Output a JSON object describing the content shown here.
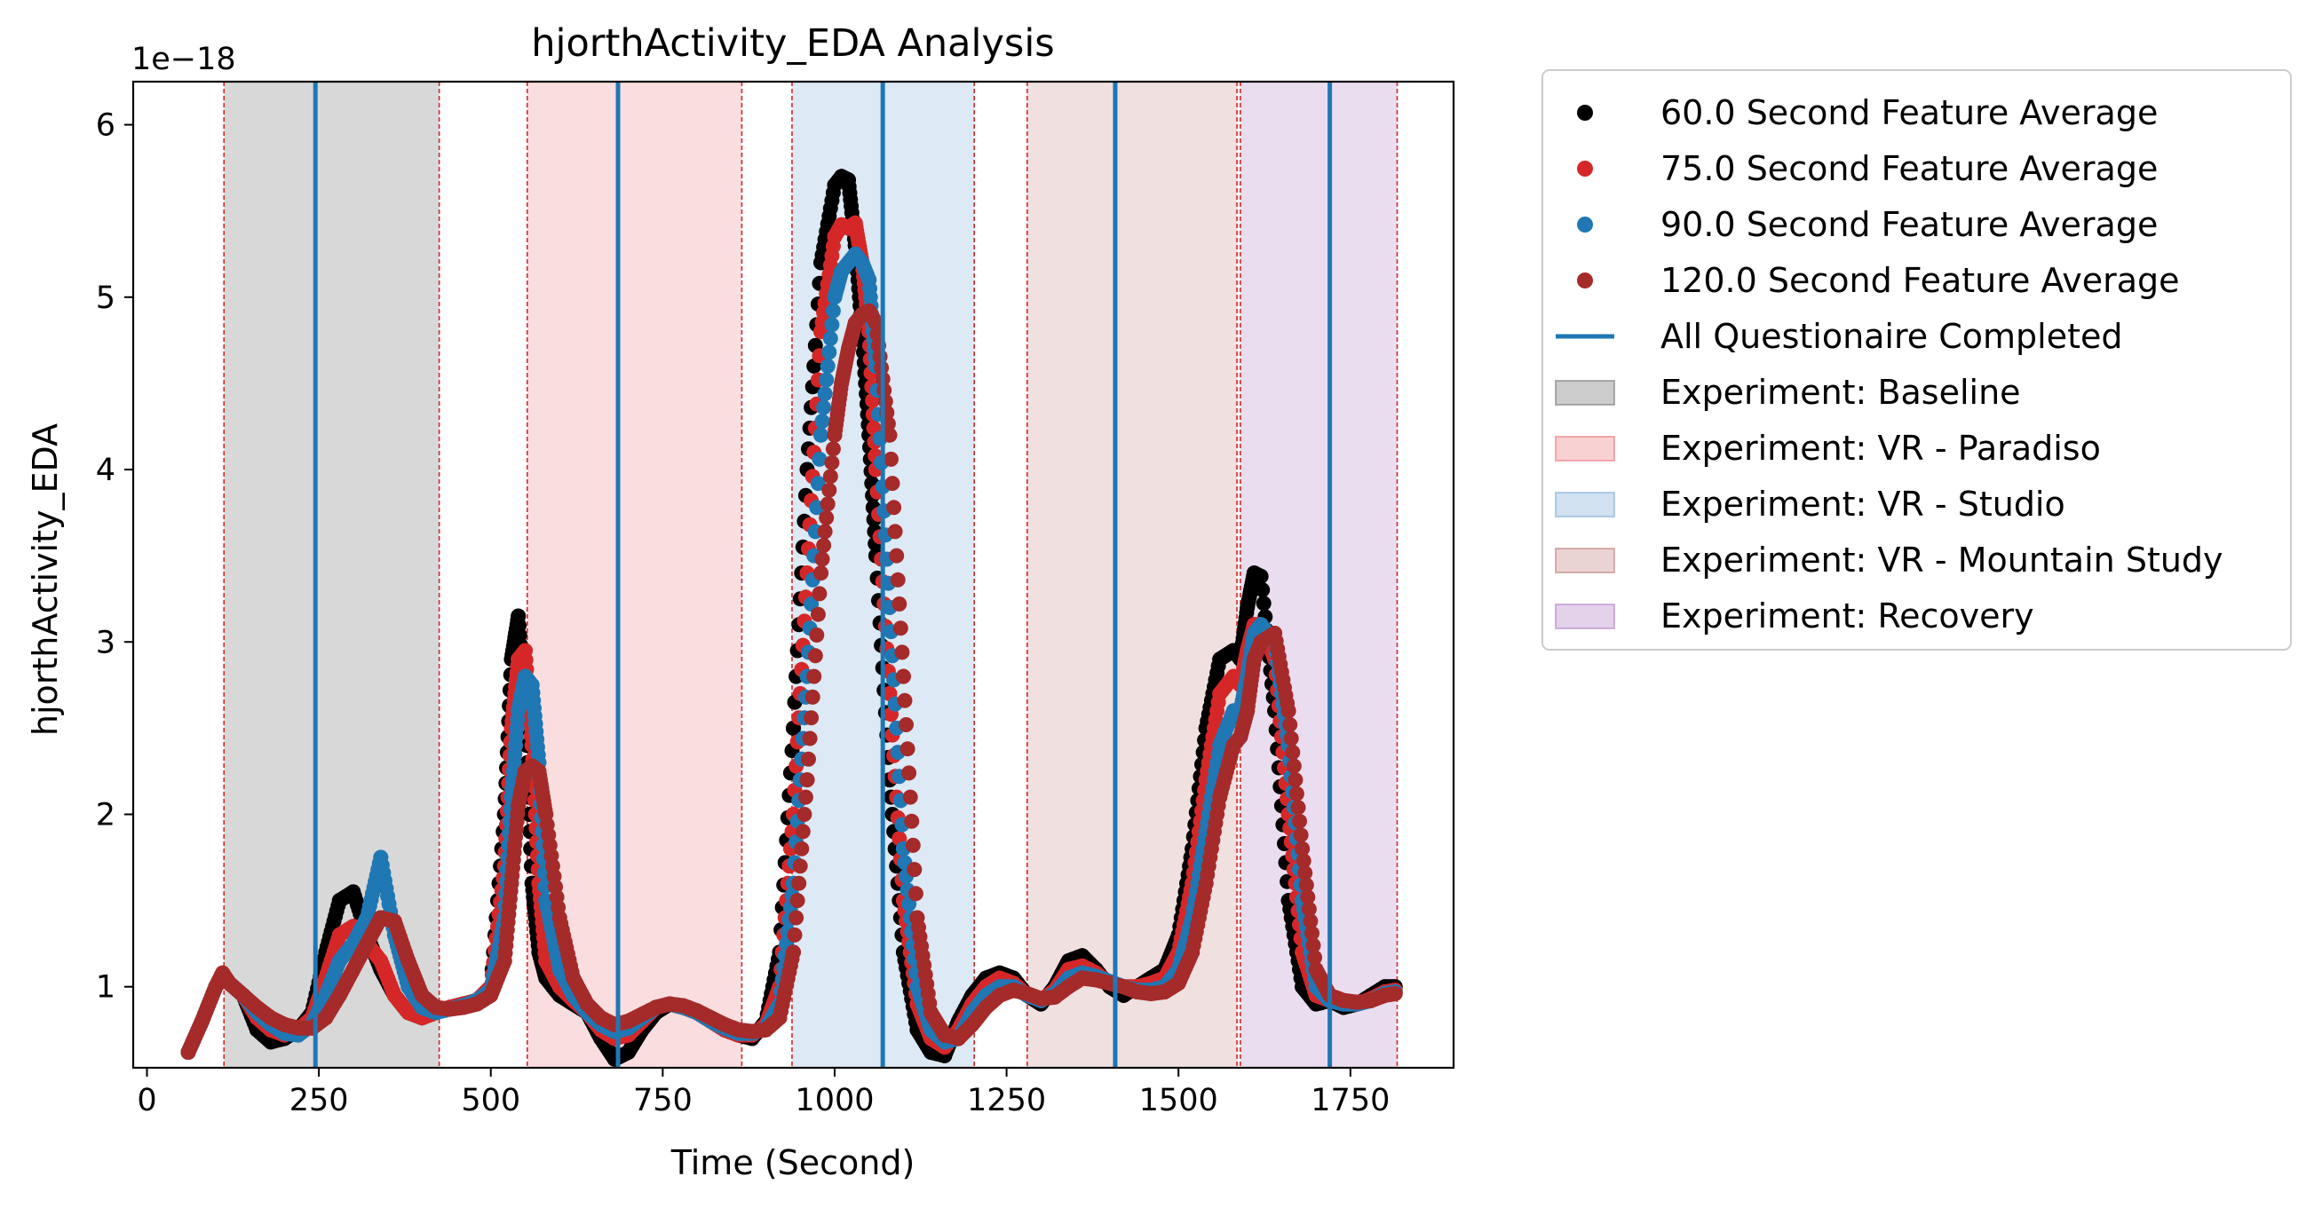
{
  "chart_data": {
    "type": "scatter",
    "title": "hjorthActivity_EDA Analysis",
    "xlabel": "Time (Second)",
    "ylabel": "hjorthActivity_EDA",
    "y_offset_label": "1e−18",
    "xlim": [
      -20,
      1900
    ],
    "ylim": [
      0.53,
      6.25
    ],
    "x_ticks": [
      0,
      250,
      500,
      750,
      1000,
      1250,
      1500,
      1750
    ],
    "y_ticks": [
      1,
      2,
      3,
      4,
      5,
      6
    ],
    "grid": false,
    "legend_position": "outside-right",
    "x": [
      60,
      80,
      100,
      110,
      120,
      140,
      160,
      180,
      200,
      220,
      240,
      260,
      280,
      300,
      320,
      340,
      360,
      380,
      400,
      420,
      440,
      460,
      480,
      500,
      520,
      530,
      540,
      550,
      560,
      570,
      580,
      600,
      620,
      640,
      660,
      680,
      700,
      720,
      740,
      760,
      780,
      800,
      820,
      840,
      860,
      880,
      900,
      920,
      940,
      960,
      980,
      1000,
      1010,
      1020,
      1030,
      1040,
      1050,
      1060,
      1080,
      1100,
      1120,
      1140,
      1160,
      1180,
      1200,
      1220,
      1240,
      1260,
      1280,
      1300,
      1320,
      1340,
      1360,
      1380,
      1400,
      1420,
      1440,
      1460,
      1480,
      1500,
      1520,
      1540,
      1560,
      1580,
      1590,
      1600,
      1610,
      1620,
      1640,
      1660,
      1680,
      1700,
      1720,
      1740,
      1760,
      1780,
      1800,
      1815
    ],
    "series": [
      {
        "name": "60.0 Second Feature Average",
        "color": "#000000",
        "values": [
          0.62,
          0.8,
          1.0,
          1.05,
          1.02,
          0.95,
          0.75,
          0.68,
          0.7,
          0.75,
          0.85,
          1.2,
          1.5,
          1.55,
          1.3,
          1.1,
          0.95,
          0.85,
          0.82,
          0.85,
          0.88,
          0.9,
          0.92,
          1.0,
          2.0,
          2.9,
          3.15,
          2.6,
          1.6,
          1.2,
          1.05,
          0.95,
          0.9,
          0.85,
          0.7,
          0.58,
          0.62,
          0.75,
          0.85,
          0.9,
          0.88,
          0.85,
          0.8,
          0.75,
          0.72,
          0.7,
          0.8,
          1.2,
          2.5,
          4.0,
          5.2,
          5.65,
          5.7,
          5.68,
          5.3,
          4.8,
          4.2,
          3.5,
          2.2,
          1.2,
          0.75,
          0.62,
          0.6,
          0.8,
          0.95,
          1.05,
          1.08,
          1.05,
          0.95,
          0.9,
          1.0,
          1.15,
          1.18,
          1.1,
          1.0,
          0.95,
          1.0,
          1.05,
          1.1,
          1.3,
          1.8,
          2.5,
          2.9,
          2.95,
          2.9,
          3.2,
          3.4,
          3.38,
          2.6,
          1.5,
          1.0,
          0.9,
          0.92,
          0.88,
          0.9,
          0.95,
          1.0,
          1.0
        ]
      },
      {
        "name": "75.0 Second Feature Average",
        "color": "#d62728",
        "values": [
          0.62,
          0.8,
          1.0,
          1.05,
          1.02,
          0.95,
          0.82,
          0.75,
          0.72,
          0.75,
          0.82,
          1.05,
          1.3,
          1.35,
          1.25,
          1.15,
          0.95,
          0.85,
          0.82,
          0.85,
          0.88,
          0.9,
          0.92,
          1.0,
          1.7,
          2.5,
          2.9,
          2.95,
          2.4,
          1.6,
          1.15,
          1.0,
          0.92,
          0.85,
          0.75,
          0.7,
          0.72,
          0.8,
          0.88,
          0.9,
          0.88,
          0.85,
          0.8,
          0.75,
          0.72,
          0.72,
          0.78,
          1.0,
          2.0,
          3.4,
          4.8,
          5.35,
          5.42,
          5.4,
          5.43,
          5.2,
          4.8,
          4.0,
          2.7,
          1.5,
          0.9,
          0.7,
          0.65,
          0.75,
          0.9,
          1.0,
          1.05,
          1.02,
          0.95,
          0.92,
          0.98,
          1.1,
          1.12,
          1.08,
          1.02,
          1.0,
          1.0,
          1.02,
          1.05,
          1.2,
          1.6,
          2.2,
          2.7,
          2.8,
          2.75,
          2.95,
          3.1,
          3.1,
          2.9,
          2.0,
          1.2,
          0.95,
          0.92,
          0.9,
          0.9,
          0.93,
          0.97,
          0.98
        ]
      },
      {
        "name": "90.0 Second Feature Average",
        "color": "#1f77b4",
        "values": [
          0.62,
          0.8,
          1.0,
          1.05,
          1.02,
          0.95,
          0.85,
          0.78,
          0.73,
          0.72,
          0.78,
          0.95,
          1.15,
          1.25,
          1.4,
          1.75,
          1.3,
          1.0,
          0.88,
          0.85,
          0.87,
          0.89,
          0.92,
          0.98,
          1.4,
          2.1,
          2.6,
          2.8,
          2.75,
          2.3,
          1.5,
          1.1,
          0.95,
          0.85,
          0.78,
          0.74,
          0.76,
          0.82,
          0.88,
          0.9,
          0.88,
          0.85,
          0.8,
          0.76,
          0.73,
          0.73,
          0.76,
          0.9,
          1.6,
          2.8,
          4.2,
          5.0,
          5.15,
          5.2,
          5.25,
          5.2,
          5.1,
          4.6,
          3.2,
          1.8,
          1.0,
          0.75,
          0.68,
          0.7,
          0.85,
          0.95,
          1.0,
          1.0,
          0.95,
          0.92,
          0.96,
          1.05,
          1.08,
          1.06,
          1.03,
          1.0,
          0.98,
          0.98,
          1.0,
          1.1,
          1.4,
          1.9,
          2.4,
          2.6,
          2.6,
          2.8,
          3.05,
          3.1,
          3.0,
          2.4,
          1.5,
          1.0,
          0.92,
          0.9,
          0.9,
          0.92,
          0.96,
          0.97
        ]
      },
      {
        "name": "120.0 Second Feature Average",
        "color": "#a52a2a",
        "values": [
          0.62,
          0.8,
          1.0,
          1.08,
          1.02,
          0.95,
          0.88,
          0.82,
          0.78,
          0.76,
          0.76,
          0.82,
          0.95,
          1.1,
          1.25,
          1.4,
          1.38,
          1.15,
          0.95,
          0.88,
          0.87,
          0.88,
          0.9,
          0.95,
          1.15,
          1.6,
          2.05,
          2.25,
          2.28,
          2.25,
          2.0,
          1.4,
          1.05,
          0.9,
          0.82,
          0.78,
          0.8,
          0.84,
          0.88,
          0.9,
          0.89,
          0.86,
          0.82,
          0.78,
          0.75,
          0.74,
          0.75,
          0.82,
          1.2,
          2.2,
          3.4,
          4.2,
          4.5,
          4.7,
          4.85,
          4.9,
          4.92,
          4.85,
          4.2,
          2.8,
          1.4,
          0.85,
          0.72,
          0.7,
          0.78,
          0.88,
          0.95,
          0.98,
          0.96,
          0.93,
          0.94,
          1.0,
          1.05,
          1.04,
          1.02,
          1.0,
          0.97,
          0.96,
          0.97,
          1.02,
          1.2,
          1.6,
          2.1,
          2.4,
          2.45,
          2.6,
          2.9,
          3.0,
          3.05,
          2.6,
          1.8,
          1.1,
          0.95,
          0.92,
          0.91,
          0.92,
          0.95,
          0.96
        ]
      }
    ],
    "vlines": {
      "name": "All Questionaire Completed",
      "color": "#1f77b4",
      "x": [
        245,
        685,
        1070,
        1408,
        1720
      ]
    },
    "spans": [
      {
        "name": "Experiment: Baseline",
        "x0": 112,
        "x1": 425,
        "color": "#7f7f7f",
        "opacity": 0.3
      },
      {
        "name": "Experiment: VR - Paradiso",
        "x0": 553,
        "x1": 865,
        "color": "#eb7a80",
        "opacity": 0.25
      },
      {
        "name": "Experiment: VR - Studio",
        "x0": 938,
        "x1": 1203,
        "color": "#85b0d8",
        "opacity": 0.28
      },
      {
        "name": "Experiment: VR - Mountain Study",
        "x0": 1280,
        "x1": 1585,
        "color": "#c28282",
        "opacity": 0.25
      },
      {
        "name": "Experiment: Recovery",
        "x0": 1590,
        "x1": 1818,
        "color": "#b785c8",
        "opacity": 0.28
      }
    ],
    "span_edges_color": "#d62728"
  }
}
